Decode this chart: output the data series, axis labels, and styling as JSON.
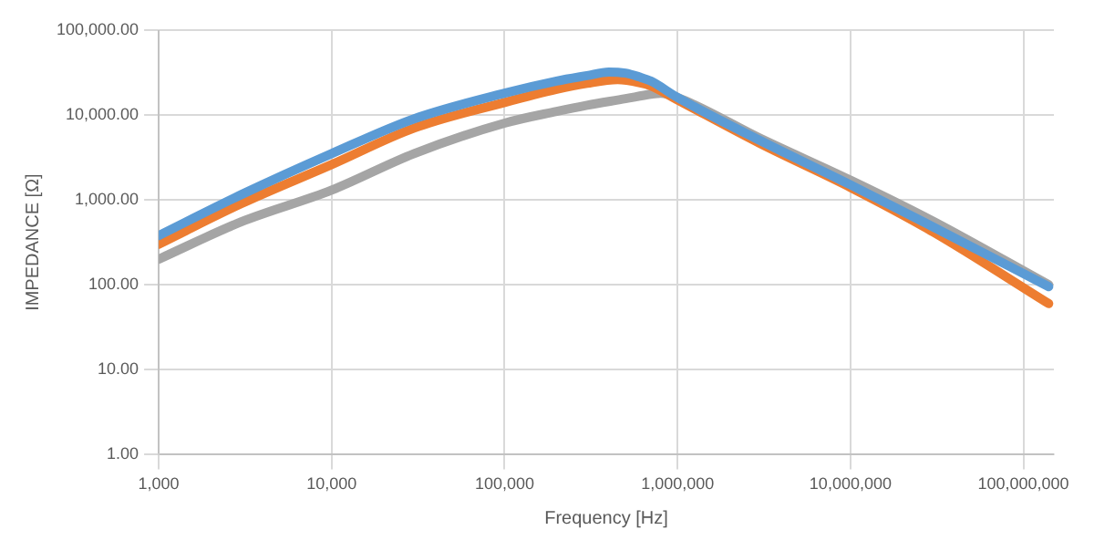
{
  "chart_data": {
    "type": "line",
    "xlabel": "Frequency [Hz]",
    "ylabel": "IMPEDANCE [Ω]",
    "log": "xy",
    "grid": true,
    "legend": false,
    "marker": "none",
    "line_style": "solid",
    "xlim": [
      1000,
      150000000
    ],
    "ylim": [
      1,
      100000
    ],
    "xticks": [
      {
        "value": 1000,
        "label": "1,000"
      },
      {
        "value": 10000,
        "label": "10,000"
      },
      {
        "value": 100000,
        "label": "100,000"
      },
      {
        "value": 1000000,
        "label": "1,000,000"
      },
      {
        "value": 10000000,
        "label": "10,000,000"
      },
      {
        "value": 100000000,
        "label": "100,000,000"
      }
    ],
    "yticks": [
      {
        "value": 1,
        "label": "1.00"
      },
      {
        "value": 10,
        "label": "10.00"
      },
      {
        "value": 100,
        "label": "100.00"
      },
      {
        "value": 1000,
        "label": "1,000.00"
      },
      {
        "value": 10000,
        "label": "10,000.00"
      },
      {
        "value": 100000,
        "label": "100,000.00"
      }
    ],
    "series": [
      {
        "color": "#5b9bd5",
        "x": [
          1000,
          3000,
          10000,
          30000,
          100000,
          200000,
          300000,
          400000,
          500000,
          600000,
          700000,
          1000000,
          3000000,
          10000000,
          30000000,
          140000000
        ],
        "values": [
          380,
          1150,
          3500,
          9000,
          18000,
          25000,
          29000,
          32000,
          31000,
          28000,
          25000,
          16000,
          5000,
          1500,
          480,
          95
        ]
      },
      {
        "color": "#ed7d31",
        "x": [
          1000,
          3000,
          10000,
          30000,
          100000,
          200000,
          300000,
          450000,
          600000,
          700000,
          1000000,
          3000000,
          10000000,
          30000000,
          140000000
        ],
        "values": [
          300,
          900,
          2600,
          7000,
          14000,
          20000,
          23500,
          26000,
          24000,
          22000,
          15000,
          4600,
          1400,
          420,
          60
        ]
      },
      {
        "color": "#a5a5a5",
        "x": [
          1000,
          3000,
          10000,
          30000,
          100000,
          200000,
          300000,
          500000,
          700000,
          800000,
          1000000,
          3000000,
          10000000,
          30000000,
          140000000
        ],
        "values": [
          200,
          550,
          1300,
          3500,
          8000,
          11000,
          13000,
          15500,
          17500,
          18000,
          16000,
          5300,
          1700,
          560,
          100
        ]
      }
    ]
  }
}
